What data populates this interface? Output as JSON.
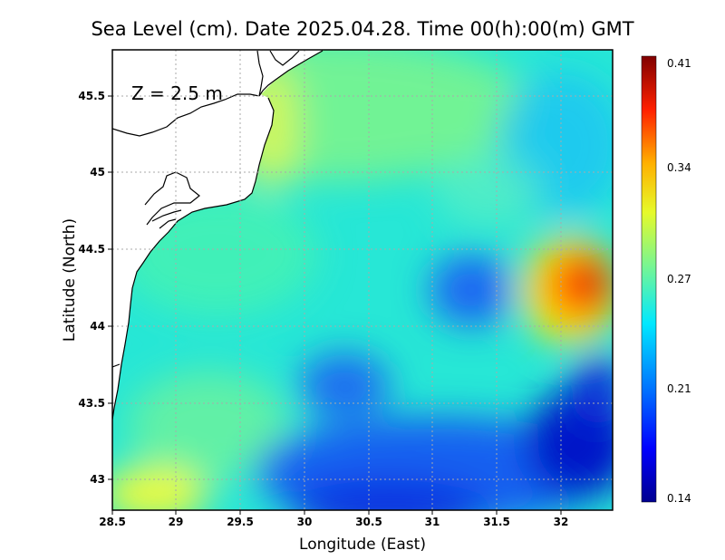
{
  "title": "Sea Level (cm). Date 2025.04.28. Time 00(h):00(m) GMT",
  "depth_label": "Z = 2.5 m",
  "x_axis": {
    "label": "Longitude (East)",
    "range": [
      28.5,
      32.4
    ],
    "ticks": [
      28.5,
      29,
      29.5,
      30,
      30.5,
      31,
      31.5,
      32
    ],
    "tick_labels": [
      "28.5",
      "29",
      "29.5",
      "30",
      "30.5",
      "31",
      "31.5",
      "32"
    ]
  },
  "y_axis": {
    "label": "Latitude (North)",
    "range": [
      42.8,
      45.8
    ],
    "ticks": [
      43,
      43.5,
      44,
      44.5,
      45,
      45.5
    ],
    "tick_labels": [
      "43",
      "43.5",
      "44",
      "44.5",
      "45",
      "45.5"
    ]
  },
  "colorbar": {
    "min": 0.14,
    "max": 0.41,
    "tick_values": [
      0.14,
      0.21,
      0.27,
      0.34,
      0.41
    ],
    "tick_labels": [
      "0.14",
      "0.21",
      "0.27",
      "0.34",
      "0.41"
    ],
    "colormap": [
      "#00008f",
      "#0000ff",
      "#0080ff",
      "#00ffff",
      "#80ff80",
      "#ffff00",
      "#ff8000",
      "#ff0000",
      "#800000"
    ]
  },
  "land_color": "#ffffff",
  "coastline_color": "#000000",
  "gridline_color": "#aaaaaa"
}
